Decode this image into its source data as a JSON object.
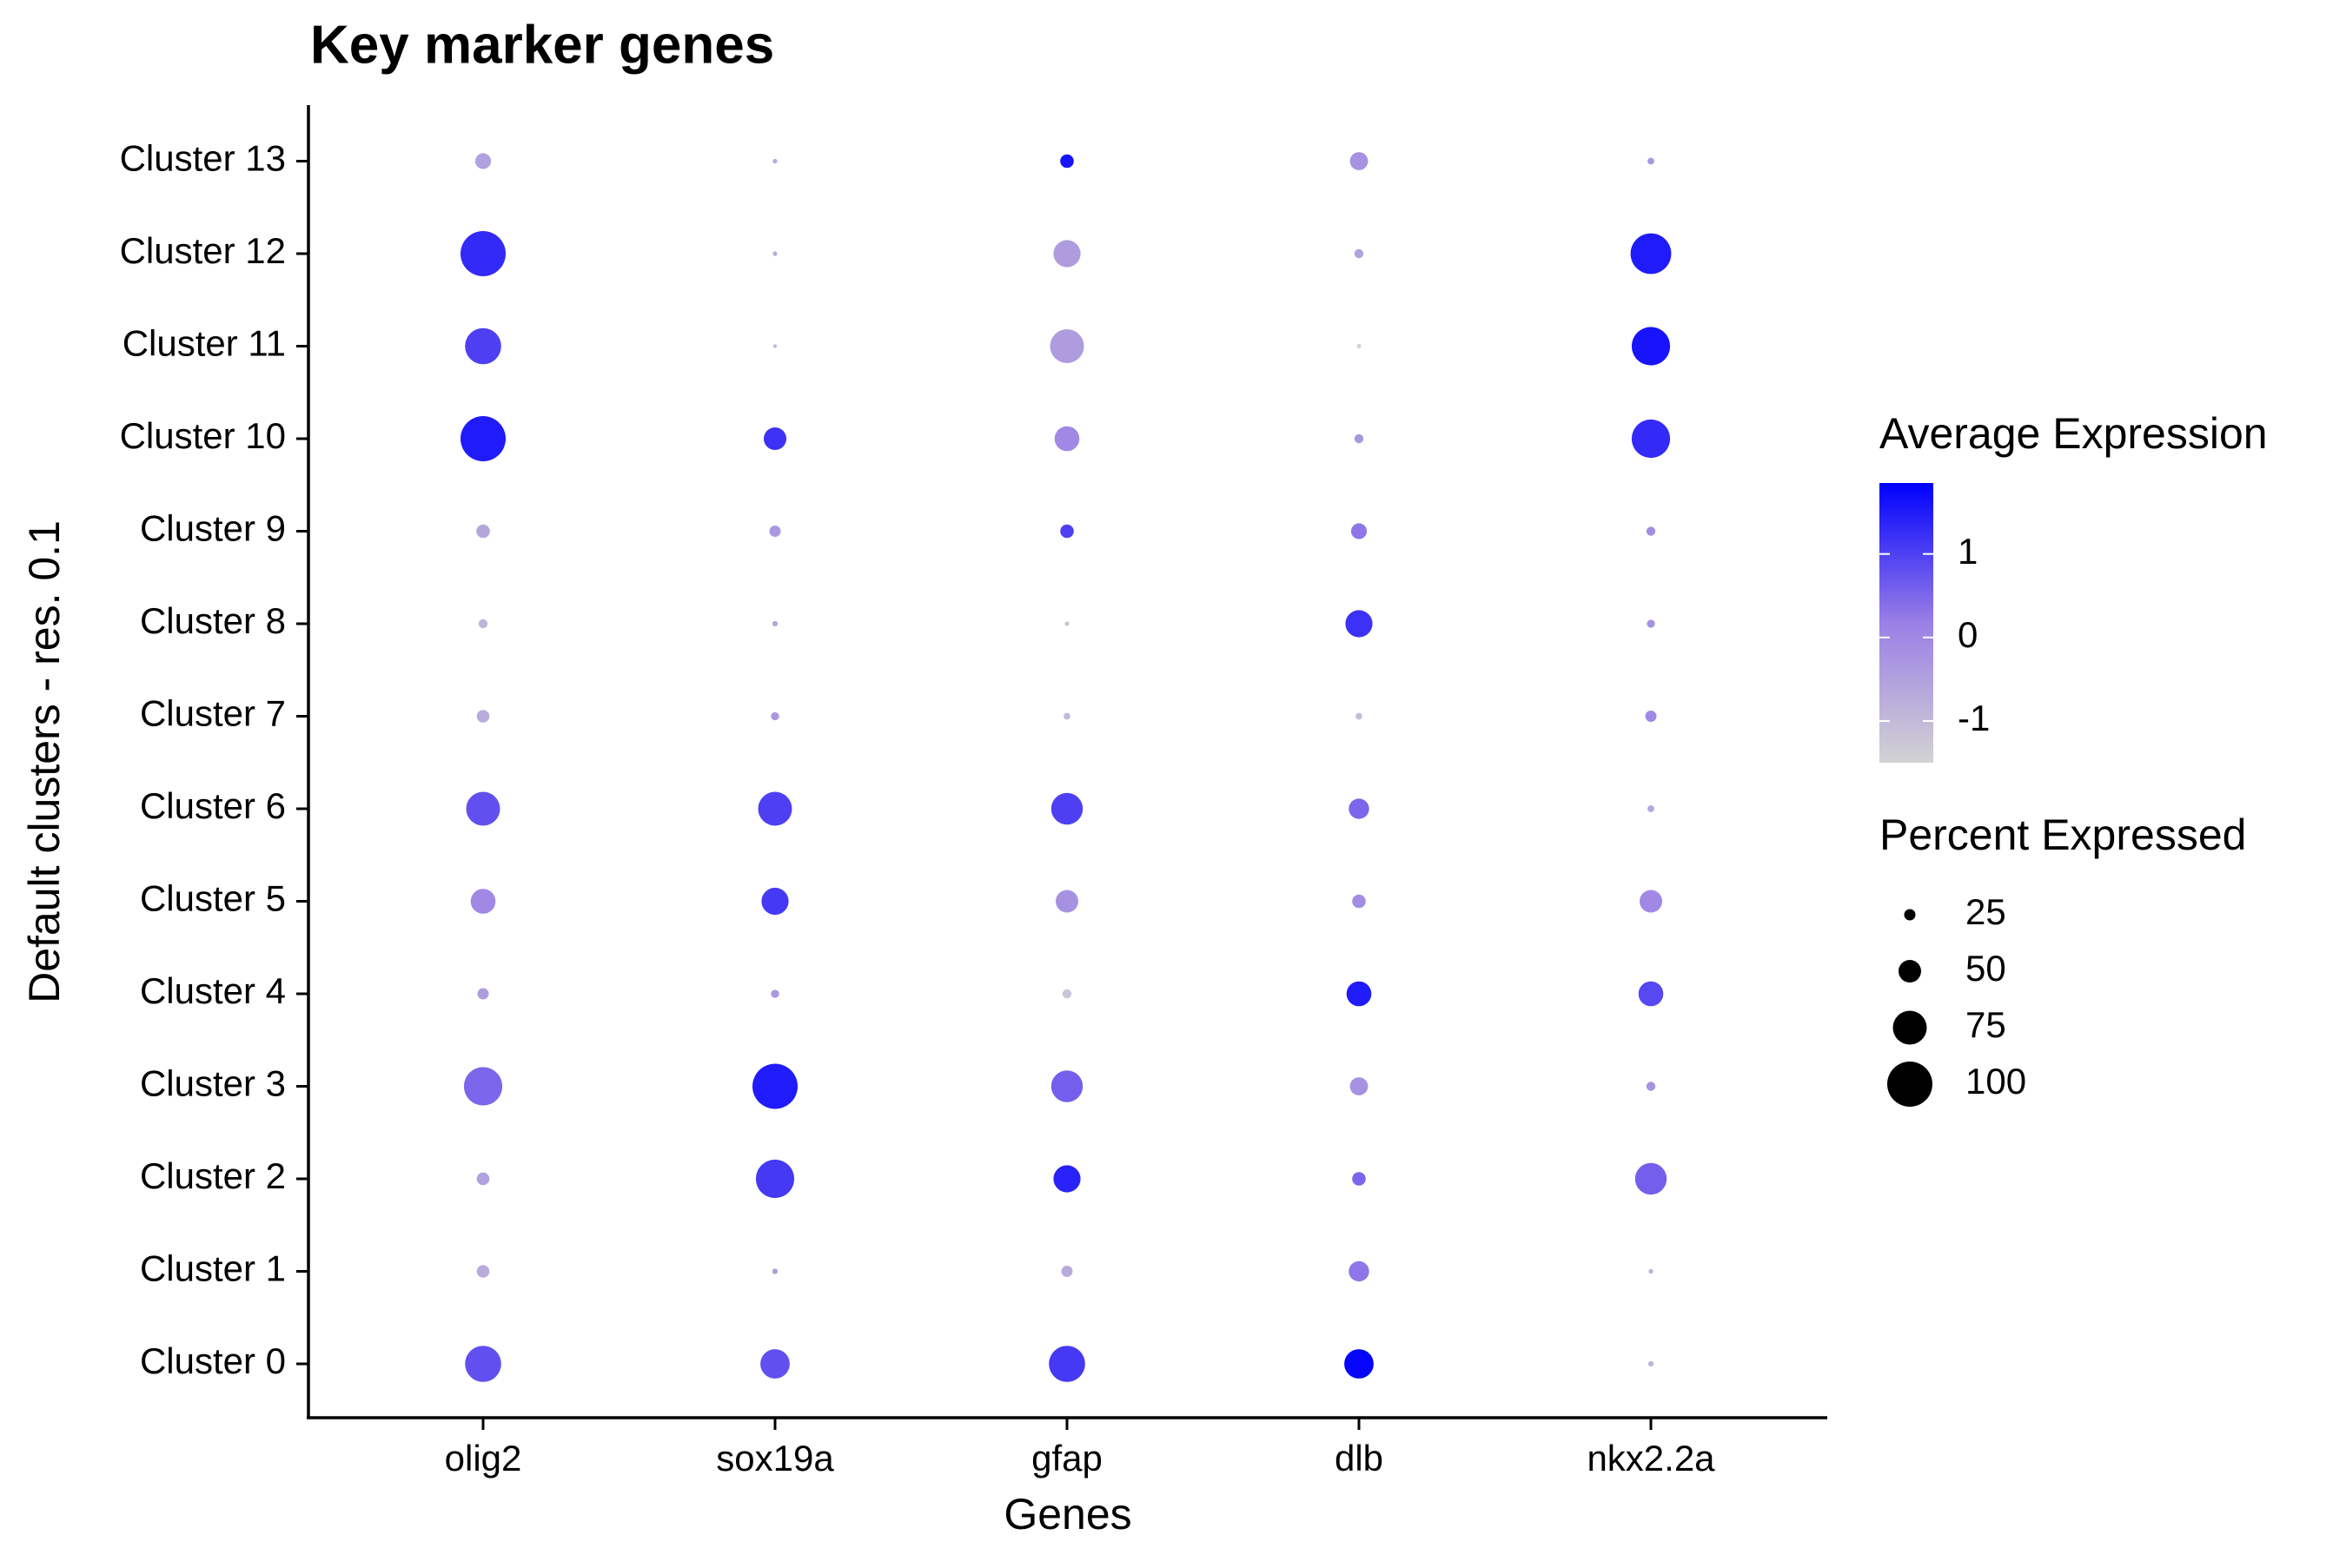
{
  "chart_data": {
    "type": "dotplot",
    "title": "Key marker genes",
    "x_label": "Genes",
    "y_label": "Default clusters - res. 0.1",
    "categories": [
      "olig2",
      "sox19a",
      "gfap",
      "dlb",
      "nkx2.2a"
    ],
    "clusters": [
      "Cluster 0",
      "Cluster 1",
      "Cluster 2",
      "Cluster 3",
      "Cluster 4",
      "Cluster 5",
      "Cluster 6",
      "Cluster 7",
      "Cluster 8",
      "Cluster 9",
      "Cluster 10",
      "Cluster 11",
      "Cluster 12",
      "Cluster 13"
    ],
    "pct_expressed": [
      [
        80,
        28,
        28,
        85,
        25,
        55,
        75,
        28,
        20,
        30,
        100,
        80,
        100,
        35
      ],
      [
        65,
        12,
        85,
        100,
        18,
        60,
        75,
        18,
        12,
        25,
        50,
        8,
        10,
        10
      ],
      [
        80,
        25,
        60,
        70,
        20,
        50,
        70,
        15,
        10,
        30,
        55,
        75,
        60,
        30
      ],
      [
        65,
        45,
        30,
        40,
        55,
        30,
        45,
        15,
        60,
        35,
        20,
        10,
        20,
        40
      ],
      [
        12,
        10,
        70,
        20,
        55,
        50,
        15,
        25,
        18,
        20,
        85,
        85,
        90,
        15
      ]
    ],
    "avg_expression": [
      [
        0.8,
        -0.7,
        -0.5,
        0.5,
        -0.4,
        0.0,
        0.8,
        -0.7,
        -0.9,
        -0.6,
        1.5,
        1.0,
        1.3,
        -0.5
      ],
      [
        0.8,
        -0.4,
        1.1,
        1.5,
        -0.3,
        1.1,
        1.0,
        -0.3,
        -0.6,
        -0.3,
        1.2,
        -0.9,
        -0.7,
        -0.6
      ],
      [
        1.1,
        -0.7,
        1.4,
        0.6,
        -1.2,
        -0.2,
        1.0,
        -1.0,
        -1.2,
        1.0,
        0.0,
        -0.4,
        -0.4,
        1.6
      ],
      [
        1.8,
        0.3,
        0.5,
        -0.2,
        1.5,
        -0.1,
        0.5,
        -1.1,
        1.2,
        0.3,
        -0.3,
        -1.5,
        -0.5,
        -0.2
      ],
      [
        -0.9,
        -0.8,
        0.6,
        -0.2,
        0.9,
        0.0,
        -0.6,
        0.0,
        -0.2,
        -0.1,
        1.3,
        1.6,
        1.5,
        -0.3
      ]
    ],
    "color_legend_title": "Average Expression",
    "color_lim": [
      -1.5,
      1.85
    ],
    "color_ticks": [
      -1,
      0,
      1
    ],
    "colors": [
      "#d3d3d3",
      "#9a7fe6",
      "#0000ff"
    ],
    "size_legend_title": "Percent Expressed",
    "size_ticks": [
      25,
      50,
      75,
      100
    ]
  }
}
